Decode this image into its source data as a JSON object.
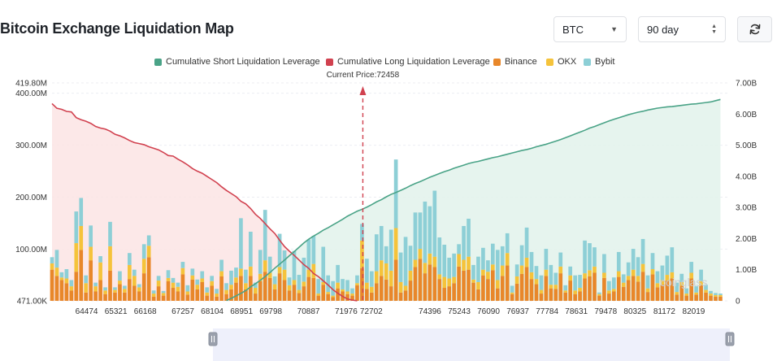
{
  "page": {
    "title": "Bitcoin Exchange Liquidation Map",
    "asset_select": {
      "value": "BTC"
    },
    "range_select": {
      "value": "90 day"
    }
  },
  "colors": {
    "short_cum": "#4aa387",
    "long_cum": "#d1414f",
    "binance": "#e8872a",
    "okx": "#f5c33b",
    "bybit": "#8dcfd6",
    "long_fill": "#fbe4e4",
    "short_fill": "#e3f3ec",
    "grid": "#eceef2",
    "nav_bg": "#eef0fb"
  },
  "chart_data": {
    "type": "bar",
    "legend": [
      {
        "name": "Cumulative Short Liquidation Leverage",
        "color_key": "short_cum"
      },
      {
        "name": "Cumulative Long Liquidation Leverage",
        "color_key": "long_cum"
      },
      {
        "name": "Binance",
        "color_key": "binance"
      },
      {
        "name": "OKX",
        "color_key": "okx"
      },
      {
        "name": "Bybit",
        "color_key": "bybit"
      }
    ],
    "current_price_label": "Current Price:72458",
    "current_price": 72458,
    "x_range": [
      63474,
      83019
    ],
    "x_tick_labels": [
      "64474",
      "65321",
      "66168",
      "67257",
      "68104",
      "68951",
      "69798",
      "70887",
      "71976",
      "72702",
      "74396",
      "75243",
      "76090",
      "76937",
      "77784",
      "78631",
      "79478",
      "80325",
      "81172",
      "82019"
    ],
    "x_tick_values": [
      64474,
      65321,
      66168,
      67257,
      68104,
      68951,
      69798,
      70887,
      71976,
      72702,
      74396,
      75243,
      76090,
      76937,
      77784,
      78631,
      79478,
      80325,
      81172,
      82019
    ],
    "y_left": {
      "min": 0.471,
      "max": 419.8,
      "unit": "M",
      "ticks": [
        0.471,
        100,
        200,
        300,
        400,
        419.8
      ],
      "tick_labels": [
        "471.00K",
        "100.00M",
        "200.00M",
        "300.00M",
        "400.00M",
        "419.80M"
      ]
    },
    "y_right": {
      "min": 0,
      "max": 7.0,
      "unit": "B",
      "ticks": [
        0,
        1,
        2,
        3,
        4,
        5,
        6,
        7
      ],
      "tick_labels": [
        "0",
        "1.00B",
        "2.00B",
        "3.00B",
        "4.00B",
        "5.00B",
        "6.00B",
        "7.00B"
      ]
    },
    "bars_x": [
      63474,
      63614,
      63754,
      63894,
      64034,
      64174,
      64314,
      64454,
      64594,
      64734,
      64874,
      65014,
      65154,
      65294,
      65434,
      65574,
      65714,
      65854,
      65994,
      66134,
      66274,
      66414,
      66554,
      66694,
      66834,
      66974,
      67114,
      67254,
      67394,
      67534,
      67674,
      67814,
      67954,
      68094,
      68234,
      68374,
      68514,
      68654,
      68794,
      68934,
      69074,
      69214,
      69354,
      69494,
      69634,
      69774,
      69914,
      70054,
      70194,
      70334,
      70474,
      70614,
      70754,
      70894,
      71034,
      71174,
      71314,
      71454,
      71594,
      71734,
      71874,
      72014,
      72154,
      72294,
      72434,
      72574,
      72714,
      72854,
      72994,
      73134,
      73274,
      73414,
      73554,
      73694,
      73834,
      73974,
      74114,
      74254,
      74394,
      74534,
      74674,
      74814,
      74954,
      75094,
      75234,
      75374,
      75514,
      75654,
      75794,
      75934,
      76074,
      76214,
      76354,
      76494,
      76634,
      76774,
      76914,
      77054,
      77194,
      77334,
      77474,
      77614,
      77754,
      77894,
      78034,
      78174,
      78314,
      78454,
      78594,
      78734,
      78874,
      79014,
      79154,
      79294,
      79434,
      79574,
      79714,
      79854,
      79994,
      80134,
      80274,
      80414,
      80554,
      80694,
      80834,
      80974,
      81114,
      81254,
      81394,
      81534,
      81674,
      81814,
      81954,
      82094,
      82234,
      82374,
      82514,
      82654,
      82794
    ],
    "series_binance": [
      60,
      48,
      40,
      34,
      20,
      56,
      98,
      16,
      78,
      18,
      40,
      13,
      58,
      16,
      32,
      16,
      42,
      29,
      18,
      53,
      84,
      8,
      28,
      10,
      38,
      25,
      18,
      51,
      12,
      41,
      22,
      36,
      10,
      29,
      8,
      47,
      13,
      22,
      35,
      48,
      22,
      48,
      14,
      38,
      56,
      44,
      22,
      53,
      40,
      20,
      31,
      15,
      28,
      46,
      44,
      10,
      31,
      13,
      7,
      24,
      18,
      13,
      10,
      30,
      63,
      23,
      16,
      34,
      48,
      41,
      28,
      79,
      16,
      20,
      39,
      65,
      81,
      53,
      70,
      65,
      42,
      25,
      28,
      34,
      66,
      58,
      60,
      35,
      22,
      49,
      42,
      59,
      24,
      48,
      68,
      13,
      33,
      52,
      65,
      42,
      32,
      14,
      48,
      24,
      23,
      53,
      16,
      39,
      13,
      18,
      43,
      47,
      54,
      10,
      44,
      14,
      18,
      46,
      27,
      40,
      48,
      37,
      56,
      17,
      51,
      26,
      31,
      39,
      43,
      12,
      29,
      10,
      43,
      12,
      30,
      16,
      10,
      8,
      8
    ],
    "series_okx": [
      12,
      16,
      5,
      9,
      8,
      55,
      46,
      18,
      26,
      10,
      34,
      7,
      47,
      5,
      7,
      7,
      27,
      19,
      8,
      28,
      22,
      6,
      11,
      5,
      6,
      10,
      9,
      12,
      6,
      8,
      9,
      7,
      6,
      9,
      6,
      10,
      8,
      9,
      10,
      14,
      12,
      18,
      11,
      14,
      22,
      10,
      10,
      12,
      20,
      10,
      9,
      6,
      9,
      14,
      27,
      4,
      5,
      4,
      3,
      11,
      4,
      5,
      4,
      4,
      53,
      12,
      11,
      23,
      30,
      31,
      30,
      61,
      20,
      9,
      19,
      14,
      19,
      20,
      21,
      20,
      9,
      21,
      15,
      12,
      24,
      21,
      25,
      6,
      14,
      11,
      14,
      11,
      16,
      20,
      24,
      3,
      14,
      16,
      18,
      13,
      10,
      7,
      12,
      7,
      8,
      13,
      4,
      10,
      7,
      7,
      10,
      12,
      12,
      3,
      10,
      6,
      5,
      11,
      8,
      8,
      12,
      11,
      15,
      7,
      10,
      8,
      9,
      11,
      12,
      5,
      7,
      4,
      11,
      4,
      8,
      5,
      4,
      3,
      3
    ],
    "series_bybit": [
      12,
      34,
      10,
      18,
      12,
      61,
      54,
      15,
      41,
      7,
      12,
      6,
      47,
      5,
      18,
      6,
      23,
      12,
      6,
      28,
      20,
      6,
      9,
      4,
      15,
      9,
      8,
      12,
      12,
      13,
      10,
      14,
      10,
      10,
      9,
      22,
      13,
      27,
      19,
      97,
      26,
      67,
      10,
      46,
      97,
      31,
      15,
      64,
      37,
      15,
      56,
      29,
      46,
      58,
      54,
      28,
      68,
      32,
      28,
      34,
      20,
      22,
      10,
      15,
      32,
      46,
      30,
      71,
      66,
      33,
      79,
      132,
      57,
      94,
      48,
      91,
      70,
      118,
      91,
      127,
      71,
      62,
      40,
      45,
      19,
      65,
      73,
      28,
      49,
      42,
      22,
      40,
      58,
      37,
      38,
      13,
      23,
      39,
      58,
      39,
      25,
      28,
      40,
      38,
      23,
      27,
      10,
      17,
      29,
      25,
      63,
      52,
      37,
      3,
      36,
      18,
      22,
      37,
      16,
      26,
      40,
      36,
      48,
      25,
      31,
      23,
      28,
      37,
      48,
      18,
      16,
      10,
      21,
      12,
      22,
      10,
      5,
      4,
      3
    ],
    "long_cumulative": [
      380,
      371,
      369,
      365,
      364,
      353,
      349,
      346,
      342,
      336,
      333,
      331,
      327,
      321,
      318,
      314,
      309,
      305,
      303,
      301,
      297,
      294,
      291,
      286,
      280,
      279,
      273,
      268,
      262,
      255,
      250,
      246,
      240,
      234,
      228,
      220,
      213,
      207,
      201,
      192,
      187,
      178,
      167,
      159,
      149,
      139,
      130,
      117,
      105,
      96,
      88,
      79,
      70,
      63,
      53,
      47,
      39,
      31,
      22,
      15,
      9,
      4,
      2,
      0.5
    ],
    "short_cumulative": [
      0.01,
      0.08,
      0.16,
      0.24,
      0.33,
      0.45,
      0.55,
      0.66,
      0.78,
      0.91,
      1.05,
      1.18,
      1.31,
      1.45,
      1.58,
      1.72,
      1.86,
      1.98,
      2.08,
      2.17,
      2.27,
      2.35,
      2.44,
      2.53,
      2.62,
      2.72,
      2.8,
      2.88,
      2.94,
      3.01,
      3.09,
      3.18,
      3.25,
      3.34,
      3.42,
      3.48,
      3.55,
      3.62,
      3.7,
      3.77,
      3.83,
      3.9,
      3.97,
      4.03,
      4.09,
      4.15,
      4.2,
      4.26,
      4.31,
      4.36,
      4.41,
      4.45,
      4.48,
      4.52,
      4.56,
      4.6,
      4.63,
      4.67,
      4.71,
      4.75,
      4.79,
      4.83,
      4.86,
      4.9,
      4.95,
      4.99,
      5.03,
      5.08,
      5.13,
      5.18,
      5.24,
      5.3,
      5.36,
      5.42,
      5.48,
      5.55,
      5.6,
      5.66,
      5.72,
      5.78,
      5.83,
      5.88,
      5.93,
      5.98,
      6.02,
      6.06,
      6.09,
      6.13,
      6.16,
      6.19,
      6.21,
      6.23,
      6.24,
      6.26,
      6.28,
      6.3,
      6.32,
      6.33,
      6.35,
      6.37,
      6.39,
      6.43,
      6.47
    ]
  },
  "watermark": "coinglass"
}
